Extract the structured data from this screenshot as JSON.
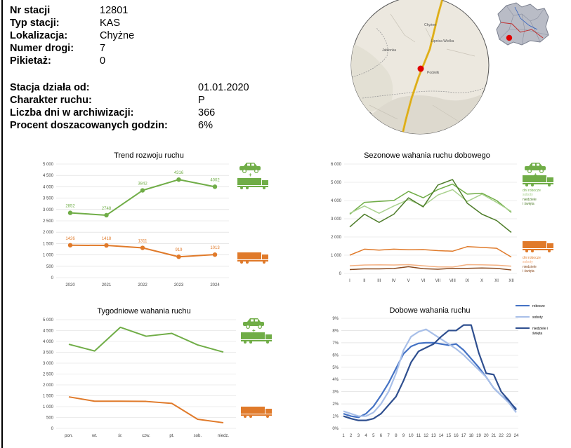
{
  "station": {
    "rows1": [
      {
        "label": "Nr stacji",
        "value": "12801"
      },
      {
        "label": "Typ stacji:",
        "value": "KAS"
      },
      {
        "label": "Lokalizacja:",
        "value": "Chyżne"
      },
      {
        "label": "Numer drogi:",
        "value": "7"
      },
      {
        "label": "Pikietaż:",
        "value": "0"
      }
    ],
    "rows2": [
      {
        "label": "Stacja działa od:",
        "value": "01.01.2020"
      },
      {
        "label": "Charakter ruchu:",
        "value": "P"
      },
      {
        "label": "Liczba dni w archiwizacji:",
        "value": "366"
      },
      {
        "label": "Procent doszacowanych godzin:",
        "value": "6%"
      }
    ]
  },
  "map": {
    "places": [
      "Chyżne",
      "Jabłonka",
      "Lipnica Wielka",
      "Podwilk"
    ],
    "road_color": "#e8b820",
    "marker_color": "#e00000"
  },
  "colors": {
    "light": "#70ad47",
    "heavy": "#e07a2a",
    "dark_green": "#4e7d2a",
    "light_green2": "#a9d18e",
    "light_orange": "#f4b183",
    "dark_orange": "#8a4a1e",
    "navy": "#2f4f8f",
    "blue": "#4472c4",
    "pale_blue": "#a8bfe8"
  },
  "chart_data": [
    {
      "type": "line",
      "title": "Trend rozwoju ruchu",
      "x": [
        "2020",
        "2021",
        "2022",
        "2023",
        "2024"
      ],
      "yticks": [
        "0",
        "500",
        "1 000",
        "1 500",
        "2 000",
        "2 500",
        "3 000",
        "3 500",
        "4 000",
        "4 500",
        "5 000"
      ],
      "ylim": [
        0,
        5000
      ],
      "series": [
        {
          "values": [
            2852,
            2748,
            3842,
            4316,
            4002
          ],
          "labels": [
            "2852",
            "2748",
            "3842",
            "4316",
            "4002"
          ],
          "color": "#70ad47"
        },
        {
          "values": [
            1426,
            1418,
            1311,
            919,
            1013
          ],
          "labels": [
            "1426",
            "1418",
            "1311",
            "919",
            "1013"
          ],
          "color": "#e07a2a"
        }
      ]
    },
    {
      "type": "line",
      "title": "Sezonowe wahania ruchu dobowego",
      "x": [
        "I",
        "II",
        "III",
        "IV",
        "V",
        "VI",
        "VII",
        "VIII",
        "IX",
        "X",
        "XI",
        "XII"
      ],
      "yticks": [
        "0",
        "1 000",
        "2 000",
        "3 000",
        "4 000",
        "5 000",
        "6 000"
      ],
      "ylim": [
        0,
        6000
      ],
      "legend": {
        "light": [
          "dni robocze",
          "soboty",
          "niedziele",
          "i święta"
        ],
        "heavy": [
          "dni robocze",
          "soboty",
          "niedziele",
          "i święta"
        ]
      },
      "series": [
        {
          "name": "dni robocze",
          "values": [
            3250,
            3900,
            3950,
            4000,
            4500,
            4150,
            4600,
            4900,
            4350,
            4400,
            4000,
            3350
          ],
          "color": "#70ad47"
        },
        {
          "name": "soboty",
          "values": [
            3300,
            3700,
            3300,
            3700,
            4050,
            3700,
            4300,
            4600,
            3950,
            4350,
            3900,
            3400
          ],
          "color": "#a9d18e"
        },
        {
          "name": "niedziele i święta",
          "values": [
            2550,
            3250,
            2800,
            3250,
            4150,
            3650,
            4850,
            5150,
            3850,
            3250,
            2900,
            2250
          ],
          "color": "#4e7d2a"
        },
        {
          "name": "dni robocze",
          "values": [
            1000,
            1330,
            1280,
            1330,
            1300,
            1310,
            1250,
            1220,
            1470,
            1430,
            1380,
            900
          ],
          "color": "#e07a2a"
        },
        {
          "name": "soboty",
          "values": [
            420,
            460,
            470,
            460,
            480,
            420,
            360,
            350,
            480,
            470,
            450,
            400
          ],
          "color": "#f4b183"
        },
        {
          "name": "niedziele i święta",
          "values": [
            210,
            250,
            250,
            270,
            370,
            260,
            230,
            280,
            280,
            300,
            280,
            190
          ],
          "color": "#8a4a1e"
        }
      ]
    },
    {
      "type": "line",
      "title": "Tygodniowe wahania ruchu",
      "x": [
        "pon.",
        "wt.",
        "śr.",
        "czw.",
        "pt.",
        "sob.",
        "niedz."
      ],
      "yticks": [
        "0",
        "500",
        "1 000",
        "1 500",
        "2 000",
        "2 500",
        "3 000",
        "3 500",
        "4 000",
        "4 500",
        "5 000"
      ],
      "ylim": [
        0,
        5000
      ],
      "series": [
        {
          "values": [
            3870,
            3560,
            4650,
            4240,
            4370,
            3840,
            3510
          ],
          "color": "#70ad47"
        },
        {
          "values": [
            1450,
            1250,
            1250,
            1240,
            1150,
            420,
            260
          ],
          "color": "#e07a2a"
        }
      ]
    },
    {
      "type": "line",
      "title": "Dobowe wahania ruchu",
      "x": [
        "1",
        "2",
        "3",
        "4",
        "5",
        "6",
        "7",
        "8",
        "9",
        "10",
        "11",
        "12",
        "13",
        "14",
        "15",
        "16",
        "17",
        "18",
        "19",
        "20",
        "21",
        "22",
        "23",
        "24"
      ],
      "yticks": [
        "0%",
        "1%",
        "2%",
        "3%",
        "4%",
        "5%",
        "6%",
        "7%",
        "8%",
        "9%"
      ],
      "ylim": [
        0,
        9
      ],
      "legend": [
        "robocze",
        "soboty",
        "niedziele i",
        "święta"
      ],
      "series": [
        {
          "name": "robocze",
          "values": [
            1.2,
            1.0,
            0.9,
            1.2,
            1.8,
            2.7,
            3.7,
            4.9,
            6.1,
            6.7,
            6.95,
            7.0,
            7.0,
            6.9,
            6.8,
            6.9,
            6.4,
            5.7,
            5.0,
            4.2,
            3.3,
            2.7,
            2.2,
            1.6
          ],
          "color": "#4472c4"
        },
        {
          "name": "soboty",
          "values": [
            1.4,
            1.2,
            1.0,
            1.0,
            1.3,
            2.0,
            3.0,
            4.5,
            6.4,
            7.5,
            7.9,
            8.1,
            7.7,
            7.3,
            6.9,
            6.5,
            6.0,
            5.4,
            4.8,
            4.2,
            3.3,
            2.7,
            2.1,
            1.3
          ],
          "color": "#a8bfe8"
        },
        {
          "name": "niedziele i święta",
          "values": [
            1.0,
            0.8,
            0.65,
            0.65,
            0.8,
            1.2,
            1.9,
            2.6,
            3.9,
            5.4,
            6.3,
            6.6,
            6.9,
            7.5,
            8.0,
            8.0,
            8.45,
            8.45,
            6.2,
            4.5,
            4.4,
            3.0,
            2.3,
            1.5
          ],
          "color": "#2f4f8f"
        }
      ]
    }
  ]
}
